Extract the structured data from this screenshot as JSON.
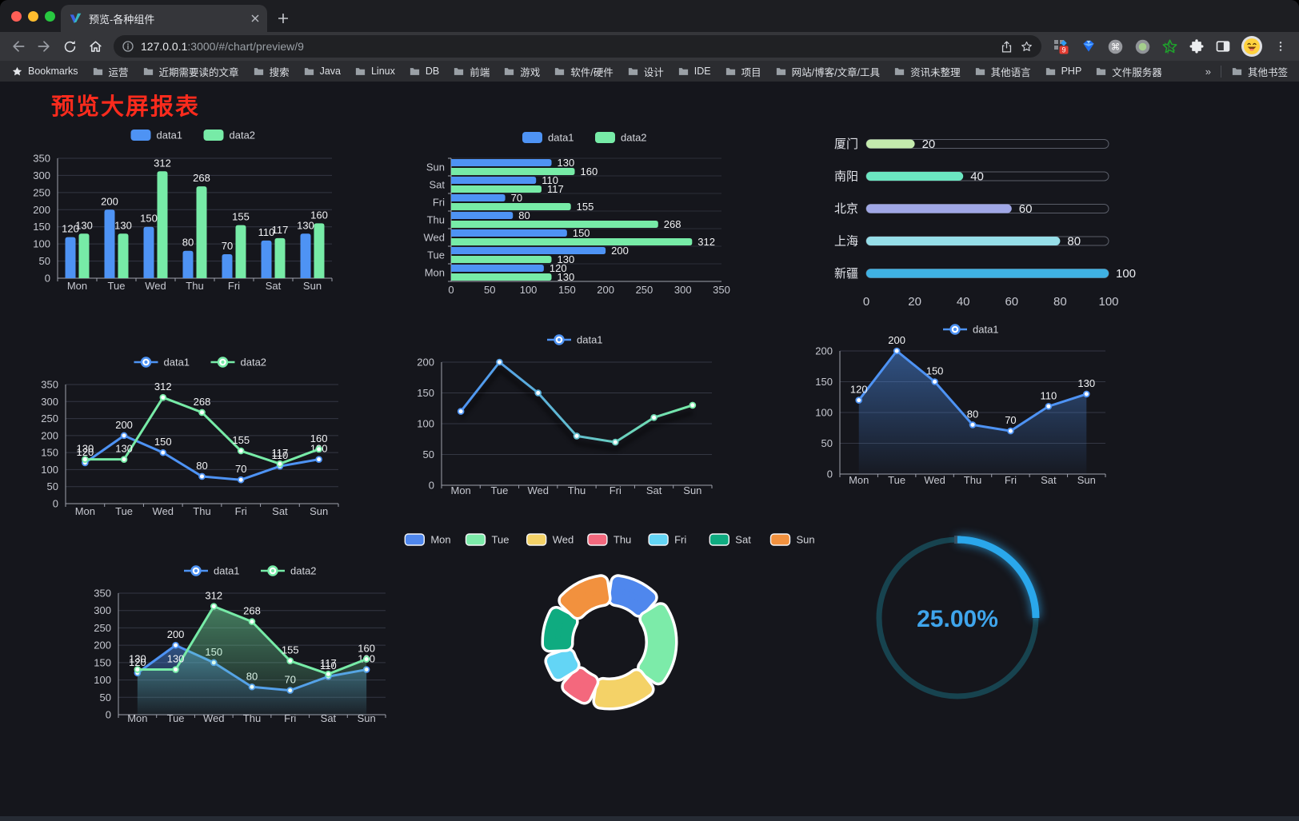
{
  "browser": {
    "tab_title": "预览-各种组件",
    "url": {
      "host": "127.0.0.1",
      "rest": ":3000/#/chart/preview/9"
    },
    "extension_badge": "9",
    "bookmarks_label": "Bookmarks",
    "bookmarks": [
      "运营",
      "近期需要读的文章",
      "搜索",
      "Java",
      "Linux",
      "DB",
      "前端",
      "游戏",
      "软件/硬件",
      "设计",
      "IDE",
      "项目",
      "网站/博客/文章/工具",
      "资讯未整理",
      "其他语言",
      "PHP",
      "文件服务器"
    ],
    "overflow_chevron": "»",
    "other_bookmarks": "其他书签"
  },
  "page": {
    "title": "预览大屏报表",
    "title_color": "#fb2b1d"
  },
  "palette": {
    "series_blue": "#4e93f4",
    "series_green": "#77eba7",
    "axis_line": "#9ea1ad",
    "grid_line": "#343743",
    "tick_label": "#c6c8d0",
    "value_label": "#f2f3f5"
  },
  "chart_data": [
    {
      "id": "c1",
      "type": "bar",
      "categories": [
        "Mon",
        "Tue",
        "Wed",
        "Thu",
        "Fri",
        "Sat",
        "Sun"
      ],
      "series": [
        {
          "name": "data1",
          "color": "#4e93f4",
          "values": [
            120,
            200,
            150,
            80,
            70,
            110,
            130
          ]
        },
        {
          "name": "data2",
          "color": "#77eba7",
          "values": [
            130,
            130,
            312,
            268,
            155,
            117,
            160
          ]
        }
      ],
      "ylim": [
        0,
        350
      ],
      "ystep": 50
    },
    {
      "id": "c2",
      "type": "bar-horizontal",
      "categories": [
        "Mon",
        "Tue",
        "Wed",
        "Thu",
        "Fri",
        "Sat",
        "Sun"
      ],
      "series": [
        {
          "name": "data1",
          "color": "#4e93f4",
          "values": [
            120,
            200,
            150,
            80,
            70,
            110,
            130
          ]
        },
        {
          "name": "data2",
          "color": "#77eba7",
          "values": [
            130,
            130,
            312,
            268,
            155,
            117,
            160
          ]
        }
      ],
      "xlim": [
        0,
        350
      ],
      "xstep": 50
    },
    {
      "id": "c3",
      "type": "progress",
      "xticks": [
        0,
        20,
        40,
        60,
        80,
        100
      ],
      "xlim": [
        0,
        100
      ],
      "rows": [
        {
          "label": "厦门",
          "value": 20,
          "color": "#c4ebad"
        },
        {
          "label": "南阳",
          "value": 40,
          "color": "#6be6c1"
        },
        {
          "label": "北京",
          "value": 60,
          "color": "#a0a7e6"
        },
        {
          "label": "上海",
          "value": 80,
          "color": "#96dee8"
        },
        {
          "label": "新疆",
          "value": 100,
          "color": "#3fb1e3"
        }
      ]
    },
    {
      "id": "c4",
      "type": "line",
      "categories": [
        "Mon",
        "Tue",
        "Wed",
        "Thu",
        "Fri",
        "Sat",
        "Sun"
      ],
      "series": [
        {
          "name": "data1",
          "color": "#4e93f4",
          "values": [
            120,
            200,
            150,
            80,
            70,
            110,
            130
          ]
        },
        {
          "name": "data2",
          "color": "#77eba7",
          "values": [
            130,
            130,
            312,
            268,
            155,
            117,
            160
          ]
        }
      ],
      "ylim": [
        0,
        350
      ],
      "ystep": 50,
      "labels": true
    },
    {
      "id": "c5",
      "type": "line",
      "categories": [
        "Mon",
        "Tue",
        "Wed",
        "Thu",
        "Fri",
        "Sat",
        "Sun"
      ],
      "series": [
        {
          "name": "data1",
          "gradient": [
            "#4e93f4",
            "#77eba7"
          ],
          "values": [
            120,
            200,
            150,
            80,
            70,
            110,
            130
          ]
        }
      ],
      "ylim": [
        0,
        200
      ],
      "ystep": 50,
      "labels": false,
      "shadow": true
    },
    {
      "id": "c6",
      "type": "line",
      "categories": [
        "Mon",
        "Tue",
        "Wed",
        "Thu",
        "Fri",
        "Sat",
        "Sun"
      ],
      "series": [
        {
          "name": "data1",
          "color": "#4e93f4",
          "area": true,
          "values": [
            120,
            200,
            150,
            80,
            70,
            110,
            130
          ]
        }
      ],
      "ylim": [
        0,
        200
      ],
      "ystep": 50,
      "labels": true
    },
    {
      "id": "c7",
      "type": "line",
      "categories": [
        "Mon",
        "Tue",
        "Wed",
        "Thu",
        "Fri",
        "Sat",
        "Sun"
      ],
      "series": [
        {
          "name": "data1",
          "color": "#4e93f4",
          "area": true,
          "values": [
            120,
            200,
            150,
            80,
            70,
            110,
            130
          ]
        },
        {
          "name": "data2",
          "color": "#77eba7",
          "area": true,
          "values": [
            130,
            130,
            312,
            268,
            155,
            117,
            160
          ]
        }
      ],
      "ylim": [
        0,
        350
      ],
      "ystep": 50,
      "labels": true
    },
    {
      "id": "c8",
      "type": "pie",
      "items": [
        {
          "label": "Mon",
          "value": 120,
          "color": "#4f87ed"
        },
        {
          "label": "Tue",
          "value": 200,
          "color": "#7ceba9"
        },
        {
          "label": "Wed",
          "value": 150,
          "color": "#f4d267"
        },
        {
          "label": "Thu",
          "value": 80,
          "color": "#f4687d"
        },
        {
          "label": "Fri",
          "value": 70,
          "color": "#63d5f5"
        },
        {
          "label": "Sat",
          "value": 110,
          "color": "#0fab80"
        },
        {
          "label": "Sun",
          "value": 130,
          "color": "#f2913e"
        }
      ]
    },
    {
      "id": "c9",
      "type": "gauge",
      "label": "25.00%",
      "percent": 25,
      "color": "#2aa7eb",
      "track": "#17434f",
      "text_color": "#3fa5ec"
    }
  ]
}
